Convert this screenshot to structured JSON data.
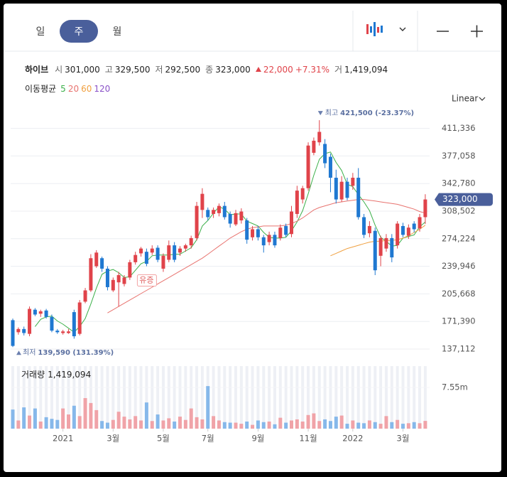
{
  "tabs": {
    "items": [
      "일",
      "주",
      "월"
    ],
    "selected": 1
  },
  "info": {
    "name": "하이브",
    "fields": [
      {
        "label": "시",
        "value": "301,000"
      },
      {
        "label": "고",
        "value": "329,500"
      },
      {
        "label": "저",
        "value": "292,500"
      },
      {
        "label": "종",
        "value": "323,000"
      }
    ],
    "change": "22,000",
    "change_pct": "+7.31%",
    "volume_label": "거",
    "volume": "1,419,094"
  },
  "ma_title": "이동평균",
  "scale_mode": "Linear",
  "chart_data": {
    "type": "candlestick",
    "up_color": "#e0434a",
    "down_color": "#1f78d1",
    "grid": true,
    "ylim": [
      129161,
      436597
    ],
    "yticks": [
      {
        "value": 137112,
        "label": "137,112"
      },
      {
        "value": 171390,
        "label": "171,390"
      },
      {
        "value": 205668,
        "label": "205,668"
      },
      {
        "value": 239946,
        "label": "239,946"
      },
      {
        "value": 274224,
        "label": "274,224"
      },
      {
        "value": 308502,
        "label": "308,502"
      },
      {
        "value": 342780,
        "label": "342,780"
      },
      {
        "value": 377058,
        "label": "377,058"
      },
      {
        "value": 411336,
        "label": "411,336"
      }
    ],
    "xticks": [
      {
        "value": 9,
        "label": "2021"
      },
      {
        "value": 18,
        "label": "3월"
      },
      {
        "value": 27,
        "label": "5월"
      },
      {
        "value": 35,
        "label": "7월"
      },
      {
        "value": 44,
        "label": "9월"
      },
      {
        "value": 53,
        "label": "11월"
      },
      {
        "value": 61,
        "label": "2022"
      },
      {
        "value": 70,
        "label": "3월"
      }
    ],
    "open": [
      173000,
      158000,
      162000,
      156000,
      186000,
      181000,
      185000,
      177000,
      160000,
      157000,
      157000,
      183000,
      156000,
      196000,
      210000,
      240000,
      250000,
      237000,
      210000,
      220000,
      218000,
      226000,
      245000,
      256000,
      258000,
      257000,
      263000,
      237000,
      248000,
      266000,
      257000,
      262000,
      266000,
      275000,
      310000,
      310000,
      305000,
      306000,
      315000,
      305000,
      292000,
      297000,
      297000,
      276000,
      286000,
      276000,
      270000,
      279000,
      275000,
      290000,
      280000,
      305000,
      323000,
      337000,
      381000,
      394000,
      392000,
      376000,
      350000,
      323000,
      345000,
      340000,
      350000,
      301000,
      281000,
      284000,
      253000,
      262000,
      275000,
      266000,
      290000,
      278000,
      293000,
      287000,
      301000
    ],
    "high": [
      175000,
      164000,
      165000,
      190000,
      188000,
      186000,
      187000,
      180000,
      162000,
      161000,
      162000,
      186000,
      198000,
      213000,
      255000,
      260000,
      252000,
      240000,
      226000,
      233000,
      229000,
      248000,
      258000,
      264000,
      262000,
      266000,
      266000,
      256000,
      272000,
      270000,
      265000,
      268000,
      278000,
      320000,
      337000,
      313000,
      313000,
      318000,
      320000,
      308000,
      310000,
      312000,
      300000,
      290000,
      290000,
      279000,
      283000,
      283000,
      292000,
      293000,
      315000,
      340000,
      340000,
      394000,
      400000,
      421500,
      398000,
      380000,
      360000,
      352000,
      350000,
      356000,
      362000,
      305000,
      296000,
      288000,
      278000,
      280000,
      280000,
      296000,
      294000,
      292000,
      296000,
      305000,
      329500
    ],
    "low": [
      139590,
      155000,
      154000,
      153000,
      178000,
      177000,
      175000,
      158000,
      156000,
      155000,
      156000,
      150000,
      154000,
      194000,
      208000,
      238000,
      233000,
      210000,
      208000,
      190000,
      215000,
      223000,
      242000,
      252000,
      240000,
      254000,
      245000,
      233000,
      245000,
      245000,
      253000,
      258000,
      262000,
      272000,
      300000,
      297000,
      300000,
      302000,
      298000,
      288000,
      290000,
      293000,
      268000,
      272000,
      272000,
      257000,
      266000,
      263000,
      272000,
      276000,
      276000,
      300000,
      318000,
      334000,
      378000,
      390000,
      362000,
      332000,
      318000,
      320000,
      322000,
      335000,
      298000,
      275000,
      276000,
      229000,
      240000,
      258000,
      245000,
      262000,
      276000,
      274000,
      282000,
      283000,
      292500
    ],
    "close": [
      141000,
      162000,
      157000,
      187000,
      180000,
      184000,
      177000,
      160000,
      158000,
      159000,
      159000,
      153000,
      195000,
      210000,
      250000,
      257000,
      237000,
      214000,
      223000,
      229000,
      226000,
      245000,
      254000,
      262000,
      243000,
      262000,
      248000,
      253000,
      266000,
      248000,
      262000,
      266000,
      275000,
      315000,
      330000,
      301000,
      310000,
      315000,
      301000,
      293000,
      306000,
      308000,
      273000,
      286000,
      276000,
      266000,
      279000,
      266000,
      288000,
      279000,
      308000,
      334000,
      337000,
      390000,
      396000,
      407000,
      368000,
      350000,
      323000,
      345000,
      325000,
      350000,
      301000,
      279000,
      290000,
      235000,
      275000,
      275000,
      251000,
      293000,
      279000,
      288000,
      286000,
      301000,
      323000
    ],
    "price_tag": {
      "value": 323000,
      "label": "323,000"
    },
    "high_note": {
      "index": 55,
      "text": "최고",
      "label": "421,500 (-23.37%)"
    },
    "low_note": {
      "index": 0,
      "text": "최저",
      "label": "139,590 (131.39%)"
    },
    "event_note": {
      "index": 24,
      "text": "유증"
    },
    "moving_averages": [
      {
        "name": "5",
        "color": "#3cb04a",
        "values": [
          null,
          null,
          null,
          null,
          165000,
          174000,
          177000,
          178000,
          172000,
          168000,
          163000,
          158000,
          165000,
          175000,
          193000,
          213000,
          230000,
          234000,
          236000,
          232000,
          226000,
          227000,
          235000,
          243000,
          246000,
          253000,
          254000,
          254000,
          254000,
          255000,
          255000,
          259000,
          263000,
          273000,
          290000,
          297000,
          306000,
          314000,
          311000,
          304000,
          305000,
          305000,
          296000,
          293000,
          290000,
          282000,
          276000,
          275000,
          275000,
          276000,
          284000,
          295000,
          309000,
          330000,
          353000,
          373000,
          380000,
          382000,
          369000,
          359000,
          342000,
          339000,
          329000,
          320000,
          309000,
          291000,
          276000,
          271000,
          265000,
          266000,
          275000,
          277000,
          279000,
          289000,
          295000
        ]
      },
      {
        "name": "20",
        "color": "#e8736f",
        "values": [
          null,
          null,
          null,
          null,
          null,
          null,
          null,
          null,
          null,
          null,
          null,
          null,
          null,
          null,
          null,
          null,
          null,
          182000,
          186000,
          190000,
          194000,
          198000,
          202000,
          206000,
          210000,
          214000,
          218000,
          222000,
          226000,
          230000,
          234000,
          238000,
          242000,
          246000,
          250000,
          255000,
          260000,
          265000,
          270000,
          275000,
          279000,
          283000,
          286000,
          288000,
          289000,
          290000,
          290000,
          290000,
          290000,
          291000,
          293000,
          296000,
          300000,
          305000,
          310000,
          313000,
          315000,
          317000,
          319000,
          320000,
          321000,
          322000,
          323000,
          323000,
          322000,
          321000,
          320000,
          319000,
          318000,
          317000,
          315000,
          313000,
          311000,
          308000,
          306000
        ]
      },
      {
        "name": "60",
        "color": "#f0a040",
        "values": [
          null,
          null,
          null,
          null,
          null,
          null,
          null,
          null,
          null,
          null,
          null,
          null,
          null,
          null,
          null,
          null,
          null,
          null,
          null,
          null,
          null,
          null,
          null,
          null,
          null,
          null,
          null,
          null,
          null,
          null,
          null,
          null,
          null,
          null,
          null,
          null,
          null,
          null,
          null,
          null,
          null,
          null,
          null,
          null,
          null,
          null,
          null,
          null,
          null,
          null,
          null,
          null,
          null,
          null,
          null,
          null,
          null,
          253000,
          256000,
          259000,
          262000,
          264000,
          266000,
          268000,
          270000,
          271000,
          271000,
          272000,
          272000,
          273000,
          275000,
          278000,
          282000,
          286000,
          291000
        ]
      },
      {
        "name": "120",
        "color": "#8a52c8"
      }
    ],
    "volume_legend": {
      "label": "거래량",
      "value": "1,419,094"
    },
    "vylim": [
      0,
      11460000
    ],
    "vyticks": [
      {
        "value": 7550000,
        "label": "7.55m"
      }
    ],
    "volume": [
      3500000,
      1500000,
      3900000,
      2400000,
      3700000,
      1300000,
      2100000,
      1800000,
      1600000,
      3700000,
      2600000,
      4200000,
      2300000,
      5600000,
      4700000,
      3400000,
      1400000,
      1100000,
      1600000,
      3100000,
      2200000,
      1700000,
      2300000,
      1500000,
      4800000,
      1400000,
      2600000,
      1500000,
      1900000,
      1300000,
      2200000,
      1600000,
      3700000,
      2100000,
      1700000,
      7800000,
      2300000,
      1500000,
      1200000,
      1100000,
      1100000,
      900000,
      1300000,
      700000,
      1500000,
      1200000,
      1300000,
      800000,
      2000000,
      1100000,
      1500000,
      1700000,
      1300000,
      2500000,
      2800000,
      1400000,
      1700000,
      1400000,
      2200000,
      2400000,
      900000,
      1500000,
      1100000,
      1000000,
      1500000,
      1200000,
      900000,
      2300000,
      1200000,
      1600000,
      900000,
      1000000,
      1200000,
      1000000,
      1419094
    ]
  }
}
